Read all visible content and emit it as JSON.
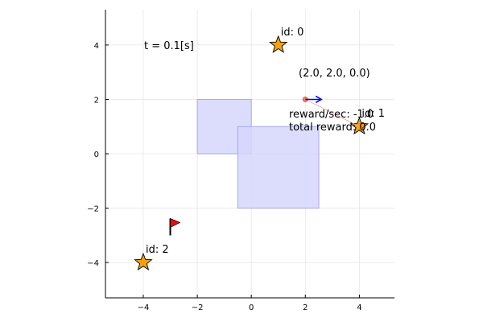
{
  "chart_data": {
    "type": "scatter",
    "xlim": [
      -5.4,
      5.3
    ],
    "ylim": [
      -5.3,
      5.3
    ],
    "x_ticks": [
      -4,
      -2,
      0,
      2,
      4
    ],
    "y_ticks": [
      -4,
      -2,
      0,
      2,
      4
    ],
    "x_tick_labels": [
      "−4",
      "−2",
      "0",
      "2",
      "4"
    ],
    "y_tick_labels": [
      "−4",
      "−2",
      "0",
      "2",
      "4"
    ],
    "grid": true,
    "legend": "none",
    "time_label": "t = 0.1[s]",
    "obstacles": [
      {
        "x": [
          -2,
          0
        ],
        "y": [
          0,
          2
        ]
      },
      {
        "x": [
          -0.5,
          2.5
        ],
        "y": [
          -2,
          1
        ]
      }
    ],
    "landmarks": [
      {
        "id_label": "id: 0",
        "x": 1,
        "y": 4
      },
      {
        "id_label": "id: 1",
        "x": 4,
        "y": 1
      },
      {
        "id_label": "id: 2",
        "x": -4,
        "y": -4
      }
    ],
    "goal": {
      "x": -3,
      "y": -2.5
    },
    "robot": {
      "x": 2,
      "y": 2,
      "theta": 0,
      "pose_label": "(2.0, 2.0, 0.0)"
    },
    "reward_per_sec_label": "reward/sec: -1.0",
    "total_reward_label": "total reward: 0.0",
    "colors": {
      "obstacle_fill": "#d6d6fd",
      "obstacle_stroke": "#a8a8f0",
      "star": "#f2a20c",
      "flag": "#e01010",
      "robot": "#f08060",
      "heading": "#0000ff"
    }
  }
}
